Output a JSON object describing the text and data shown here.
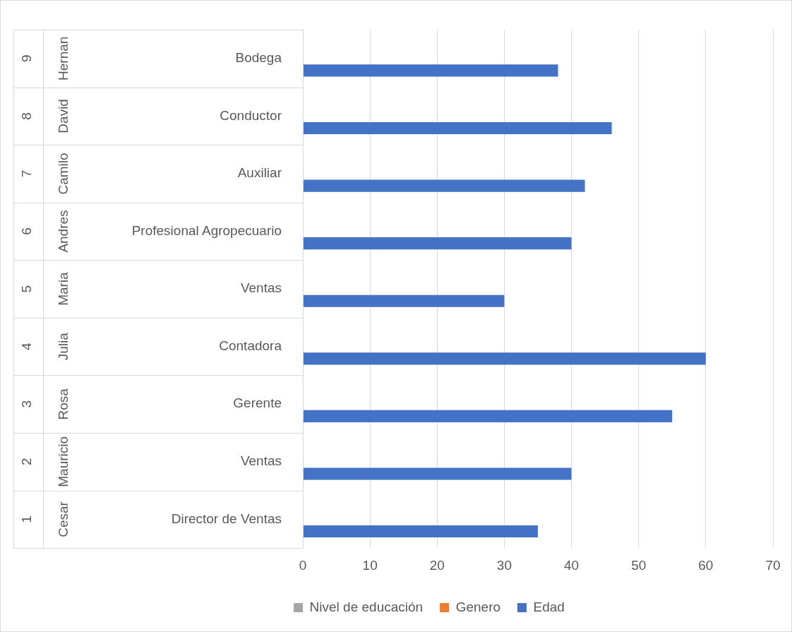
{
  "chart_data": {
    "type": "bar",
    "orientation": "horizontal",
    "categories": [
      "Bodega",
      "Conductor",
      "Auxiliar",
      "Profesional Agropecuario",
      "Ventas",
      "Contadora",
      "Gerente",
      "Ventas",
      "Director de Ventas"
    ],
    "series": [
      {
        "name": "Nivel de educación",
        "color": "#a5a5a5",
        "values": [
          null,
          null,
          null,
          null,
          null,
          null,
          null,
          null,
          null
        ]
      },
      {
        "name": "Genero",
        "color": "#ed7d31",
        "values": [
          null,
          null,
          null,
          null,
          null,
          null,
          null,
          null,
          null
        ]
      },
      {
        "name": "Edad",
        "color": "#4472c4",
        "values": [
          38,
          46,
          42,
          40,
          30,
          60,
          55,
          40,
          35
        ]
      }
    ],
    "xlim": [
      0,
      70
    ],
    "xticks": [
      0,
      10,
      20,
      30,
      40,
      50,
      60,
      70
    ],
    "grid": "x",
    "legend": "bottom",
    "annotations": [
      "9",
      "Hernan",
      "8",
      "David",
      "7",
      "Camilo",
      "6",
      "Andres",
      "5",
      "Maria",
      "4",
      "Julia",
      "3",
      "Rosa",
      "2",
      "Mauricio",
      "1",
      "Cesar"
    ]
  }
}
